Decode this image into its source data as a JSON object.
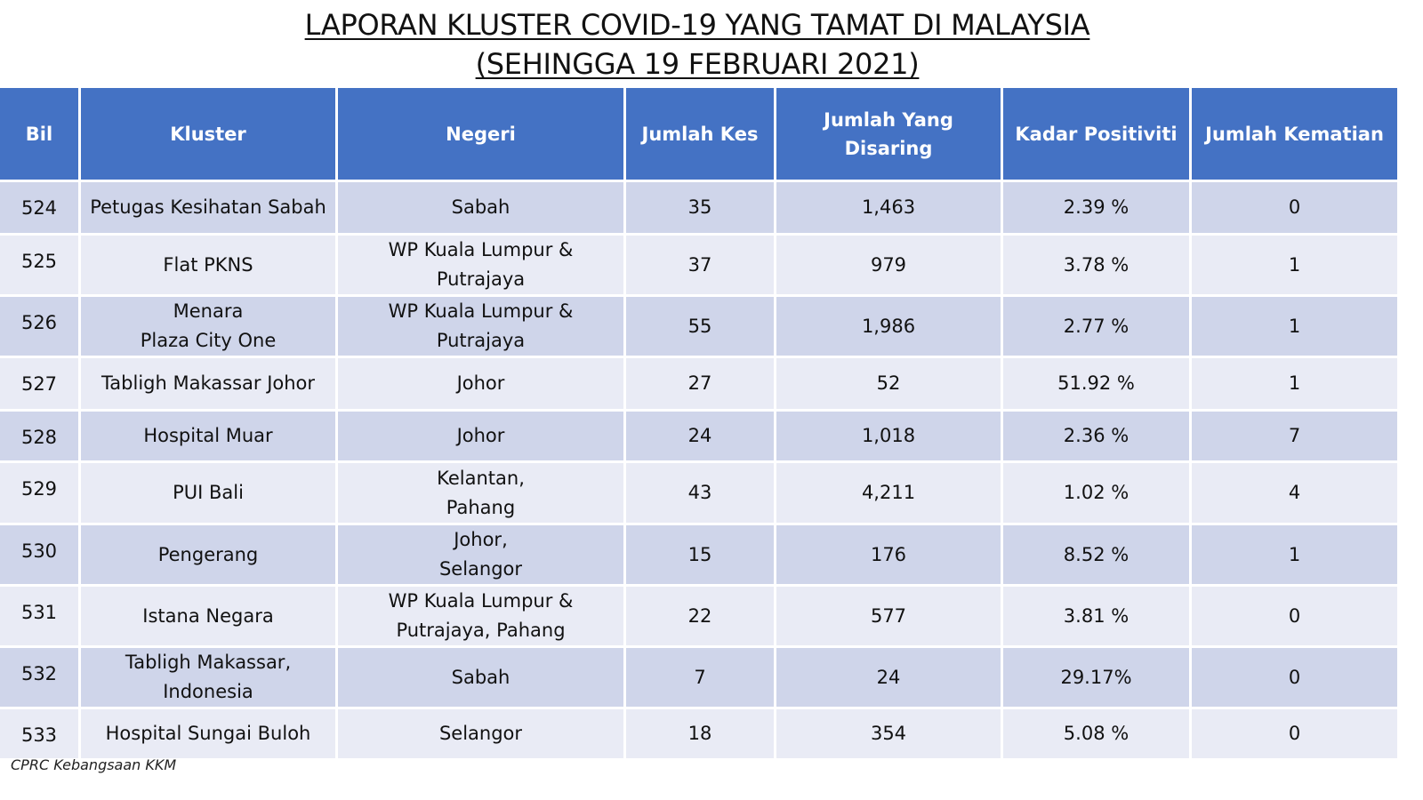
{
  "title": {
    "line1": "LAPORAN KLUSTER COVID-19 YANG TAMAT DI MALAYSIA",
    "line2": "(SEHINGGA 19 FEBRUARI 2021)"
  },
  "table": {
    "headers": {
      "bil": "Bil",
      "kluster": "Kluster",
      "negeri": "Negeri",
      "jumlah_kes": "Jumlah Kes",
      "jumlah_disaring_1": "Jumlah Yang",
      "jumlah_disaring_2": "Disaring",
      "kadar_positiviti": "Kadar Positiviti",
      "jumlah_kematian": "Jumlah Kematian"
    },
    "rows": [
      {
        "bil": "524",
        "kluster": [
          "Petugas Kesihatan Sabah"
        ],
        "negeri": [
          "Sabah"
        ],
        "kes": "35",
        "disaring": "1,463",
        "positiviti": "2.39 %",
        "kematian": "0"
      },
      {
        "bil": "525",
        "kluster": [
          "Flat PKNS"
        ],
        "negeri": [
          "WP Kuala Lumpur &",
          "Putrajaya"
        ],
        "kes": "37",
        "disaring": "979",
        "positiviti": "3.78 %",
        "kematian": "1"
      },
      {
        "bil": "526",
        "kluster": [
          "Menara",
          "Plaza City One"
        ],
        "negeri": [
          "WP Kuala Lumpur &",
          "Putrajaya"
        ],
        "kes": "55",
        "disaring": "1,986",
        "positiviti": "2.77 %",
        "kematian": "1"
      },
      {
        "bil": "527",
        "kluster": [
          "Tabligh Makassar Johor"
        ],
        "negeri": [
          "Johor"
        ],
        "kes": "27",
        "disaring": "52",
        "positiviti": "51.92 %",
        "kematian": "1"
      },
      {
        "bil": "528",
        "kluster": [
          "Hospital Muar"
        ],
        "negeri": [
          "Johor"
        ],
        "kes": "24",
        "disaring": "1,018",
        "positiviti": "2.36 %",
        "kematian": "7"
      },
      {
        "bil": "529",
        "kluster": [
          "PUI Bali"
        ],
        "negeri": [
          "Kelantan,",
          "Pahang"
        ],
        "kes": "43",
        "disaring": "4,211",
        "positiviti": "1.02 %",
        "kematian": "4"
      },
      {
        "bil": "530",
        "kluster": [
          "Pengerang"
        ],
        "negeri": [
          "Johor,",
          "Selangor"
        ],
        "kes": "15",
        "disaring": "176",
        "positiviti": "8.52 %",
        "kematian": "1"
      },
      {
        "bil": "531",
        "kluster": [
          "Istana Negara"
        ],
        "negeri": [
          "WP Kuala Lumpur &",
          "Putrajaya, Pahang"
        ],
        "kes": "22",
        "disaring": "577",
        "positiviti": "3.81 %",
        "kematian": "0"
      },
      {
        "bil": "532",
        "kluster": [
          "Tabligh Makassar,",
          "Indonesia"
        ],
        "negeri": [
          "Sabah"
        ],
        "kes": "7",
        "disaring": "24",
        "positiviti": "29.17%",
        "kematian": "0"
      },
      {
        "bil": "533",
        "kluster": [
          "Hospital Sungai Buloh"
        ],
        "negeri": [
          "Selangor"
        ],
        "kes": "18",
        "disaring": "354",
        "positiviti": "5.08 %",
        "kematian": "0"
      }
    ]
  },
  "footer": {
    "source": "CPRC Kebangsaan KKM"
  },
  "colors": {
    "header_bg": "#4472c4",
    "row_dark": "#cfd5ea",
    "row_light": "#e9ebf5"
  }
}
